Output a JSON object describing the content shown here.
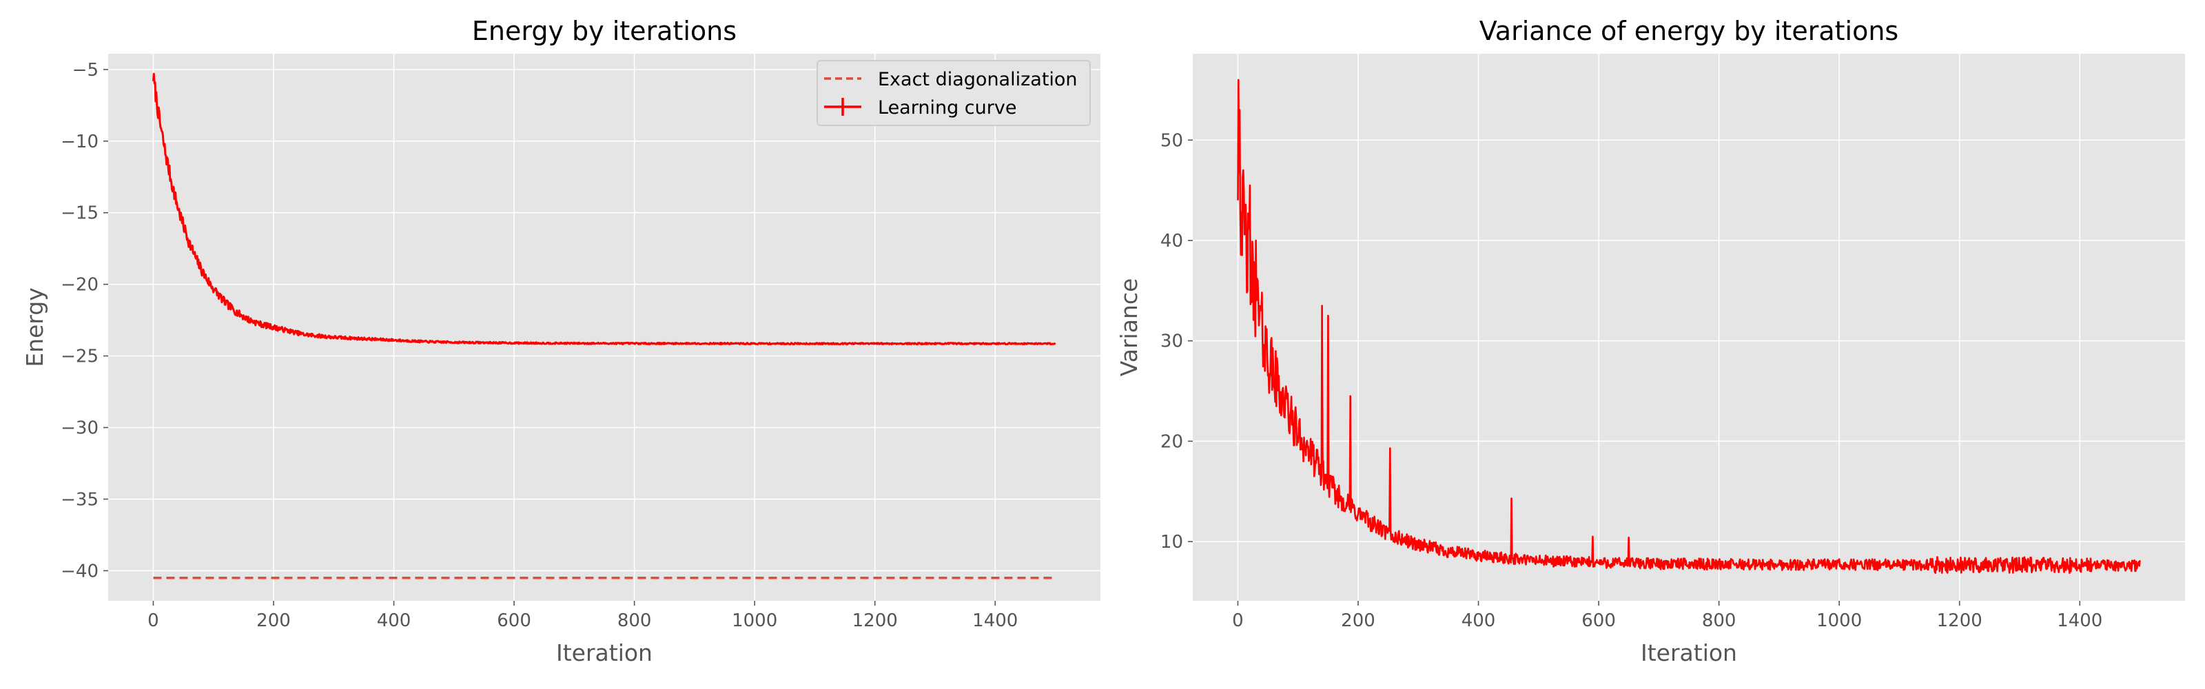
{
  "colors": {
    "figure_bg": "#ffffff",
    "axes_bg": "#e5e5e5",
    "grid": "#ffffff",
    "tick": "#555555",
    "curve": "#ff0000",
    "exact": "#e24a33",
    "legend_bg": "#e5e5e5",
    "legend_border": "#cccccc"
  },
  "chart_data": [
    {
      "type": "line",
      "title": "Energy by iterations",
      "xlabel": "Iteration",
      "ylabel": "Energy",
      "xlim": [
        -75,
        1575
      ],
      "ylim": [
        -42.1,
        -3.9
      ],
      "xticks": [
        0,
        200,
        400,
        600,
        800,
        1000,
        1200,
        1400
      ],
      "yticks": [
        -40,
        -35,
        -30,
        -25,
        -20,
        -15,
        -10,
        -5
      ],
      "grid": true,
      "legend_placement": "top-right",
      "legend": {
        "exact": "Exact diagonalization",
        "curve": "Learning curve"
      },
      "series": [
        {
          "name": "Exact diagonalization",
          "style": "dashed",
          "x": [
            0,
            1500
          ],
          "y": [
            -40.5,
            -40.5
          ]
        },
        {
          "name": "Learning curve",
          "style": "solid",
          "x": [
            0,
            5,
            10,
            20,
            30,
            40,
            50,
            60,
            70,
            80,
            90,
            100,
            120,
            140,
            160,
            180,
            200,
            250,
            300,
            350,
            400,
            450,
            500,
            600,
            700,
            800,
            900,
            1000,
            1100,
            1200,
            1300,
            1400,
            1500
          ],
          "y": [
            -5.5,
            -7.0,
            -8.5,
            -10.8,
            -12.8,
            -14.5,
            -15.9,
            -17.1,
            -18.1,
            -19.0,
            -19.7,
            -20.3,
            -21.3,
            -22.0,
            -22.5,
            -22.8,
            -23.0,
            -23.5,
            -23.7,
            -23.8,
            -23.9,
            -24.0,
            -24.05,
            -24.1,
            -24.12,
            -24.13,
            -24.13,
            -24.14,
            -24.14,
            -24.14,
            -24.14,
            -24.14,
            -24.14
          ]
        }
      ]
    },
    {
      "type": "line",
      "title": "Variance of energy by iterations",
      "xlabel": "Iteration",
      "ylabel": "Variance",
      "xlim": [
        -75,
        1575
      ],
      "ylim": [
        4.1,
        58.6
      ],
      "xticks": [
        0,
        200,
        400,
        600,
        800,
        1000,
        1200,
        1400
      ],
      "yticks": [
        10,
        20,
        30,
        40,
        50
      ],
      "grid": true,
      "series": [
        {
          "style": "solid",
          "x": [
            0,
            5,
            10,
            20,
            30,
            40,
            50,
            60,
            70,
            80,
            90,
            100,
            120,
            140,
            160,
            180,
            200,
            250,
            300,
            350,
            400,
            450,
            500,
            600,
            700,
            800,
            900,
            1000,
            1100,
            1200,
            1300,
            1400,
            1500
          ],
          "y": [
            47.0,
            44.0,
            41.0,
            37.0,
            34.0,
            31.0,
            28.5,
            26.5,
            25.0,
            23.5,
            22.0,
            20.8,
            18.8,
            16.8,
            15.0,
            13.8,
            12.8,
            10.7,
            9.7,
            9.0,
            8.6,
            8.3,
            8.1,
            7.9,
            7.8,
            7.75,
            7.7,
            7.7,
            7.7,
            7.65,
            7.65,
            7.65,
            7.6
          ],
          "spikes": [
            {
              "x": 1,
              "y": 56.0
            },
            {
              "x": 3,
              "y": 53.0
            },
            {
              "x": 20,
              "y": 45.5
            },
            {
              "x": 30,
              "y": 40.0
            },
            {
              "x": 140,
              "y": 33.5
            },
            {
              "x": 150,
              "y": 32.5
            },
            {
              "x": 187,
              "y": 24.5
            },
            {
              "x": 253,
              "y": 19.3
            },
            {
              "x": 455,
              "y": 14.3
            },
            {
              "x": 590,
              "y": 10.5
            },
            {
              "x": 650,
              "y": 10.4
            }
          ]
        }
      ]
    }
  ]
}
